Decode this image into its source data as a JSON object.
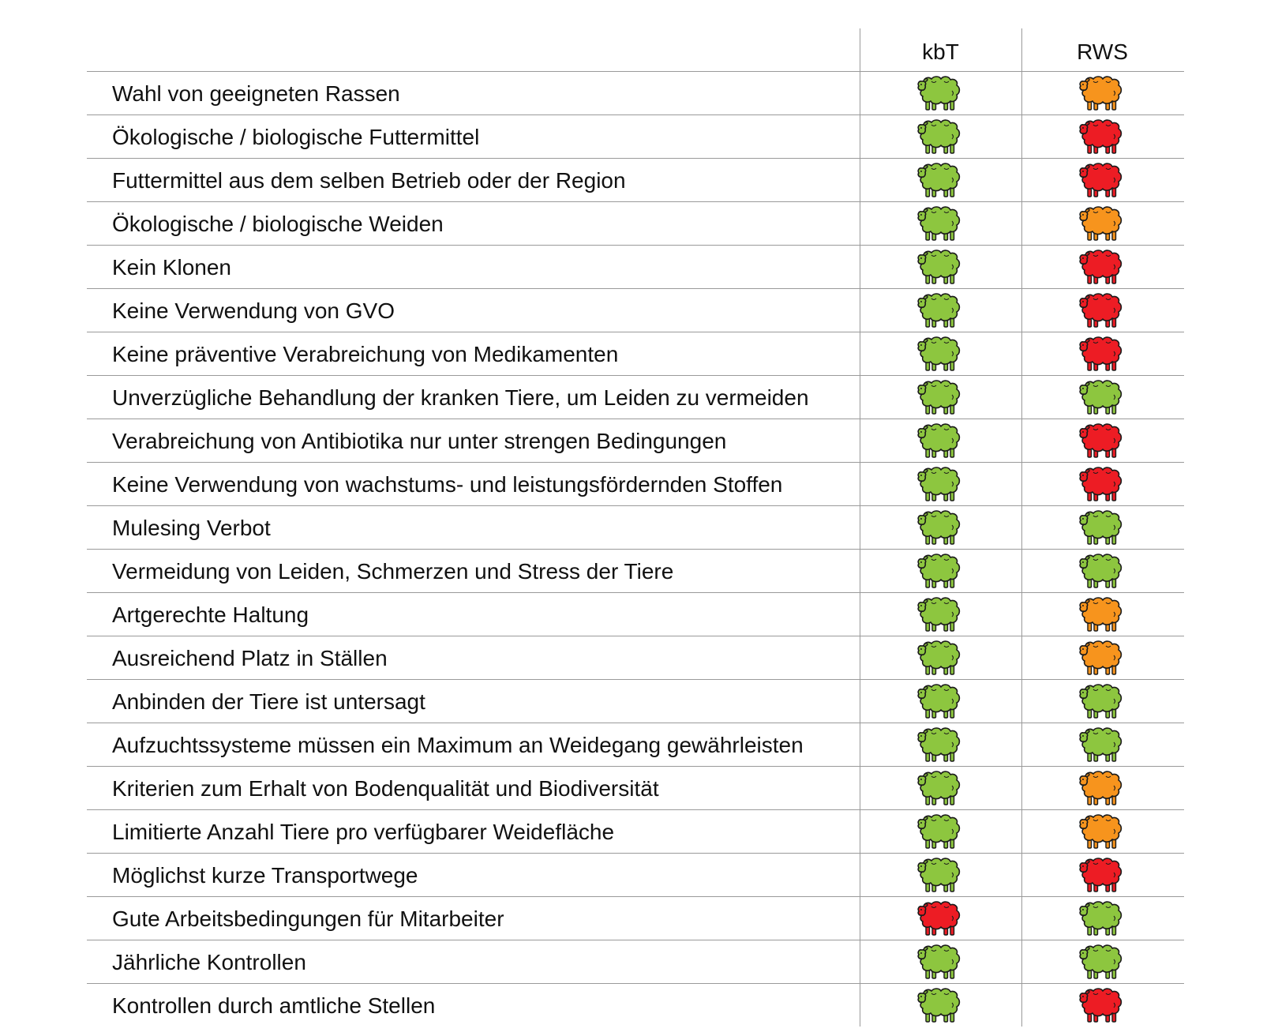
{
  "columns": [
    "kbT",
    "RWS"
  ],
  "colors": {
    "green": "#8dc63f",
    "orange": "#f7941d",
    "red": "#ed1c24",
    "outline": "#1a1a1a",
    "grid": "#9a9a9a"
  },
  "icon": "sheep-icon",
  "rows": [
    {
      "criterion": "Wahl von geeigneten Rassen",
      "kbT": "green",
      "RWS": "orange"
    },
    {
      "criterion": "Ökologische / biologische Futtermittel",
      "kbT": "green",
      "RWS": "red"
    },
    {
      "criterion": "Futtermittel aus dem selben Betrieb oder der Region",
      "kbT": "green",
      "RWS": "red"
    },
    {
      "criterion": "Ökologische / biologische Weiden",
      "kbT": "green",
      "RWS": "orange"
    },
    {
      "criterion": "Kein Klonen",
      "kbT": "green",
      "RWS": "red"
    },
    {
      "criterion": "Keine Verwendung von GVO",
      "kbT": "green",
      "RWS": "red"
    },
    {
      "criterion": "Keine präventive Verabreichung von Medikamenten",
      "kbT": "green",
      "RWS": "red"
    },
    {
      "criterion": "Unverzügliche Behandlung der kranken Tiere, um Leiden zu vermeiden",
      "kbT": "green",
      "RWS": "green"
    },
    {
      "criterion": "Verabreichung von Antibiotika nur unter strengen Bedingungen",
      "kbT": "green",
      "RWS": "red"
    },
    {
      "criterion": "Keine Verwendung von wachstums- und leistungsfördernden Stoffen",
      "kbT": "green",
      "RWS": "red"
    },
    {
      "criterion": "Mulesing Verbot",
      "kbT": "green",
      "RWS": "green"
    },
    {
      "criterion": "Vermeidung von Leiden, Schmerzen und Stress der Tiere",
      "kbT": "green",
      "RWS": "green"
    },
    {
      "criterion": "Artgerechte Haltung",
      "kbT": "green",
      "RWS": "orange"
    },
    {
      "criterion": "Ausreichend Platz in Ställen",
      "kbT": "green",
      "RWS": "orange"
    },
    {
      "criterion": "Anbinden der Tiere ist untersagt",
      "kbT": "green",
      "RWS": "green"
    },
    {
      "criterion": "Aufzuchtssysteme müssen ein Maximum an Weidegang gewährleisten",
      "kbT": "green",
      "RWS": "green"
    },
    {
      "criterion": "Kriterien zum Erhalt von Bodenqualität und Biodiversität",
      "kbT": "green",
      "RWS": "orange"
    },
    {
      "criterion": "Limitierte Anzahl Tiere pro verfügbarer Weidefläche",
      "kbT": "green",
      "RWS": "orange"
    },
    {
      "criterion": "Möglichst kurze Transportwege",
      "kbT": "green",
      "RWS": "red"
    },
    {
      "criterion": "Gute Arbeitsbedingungen für Mitarbeiter",
      "kbT": "red",
      "RWS": "green"
    },
    {
      "criterion": "Jährliche Kontrollen",
      "kbT": "green",
      "RWS": "green"
    },
    {
      "criterion": "Kontrollen durch amtliche Stellen",
      "kbT": "green",
      "RWS": "red"
    }
  ]
}
